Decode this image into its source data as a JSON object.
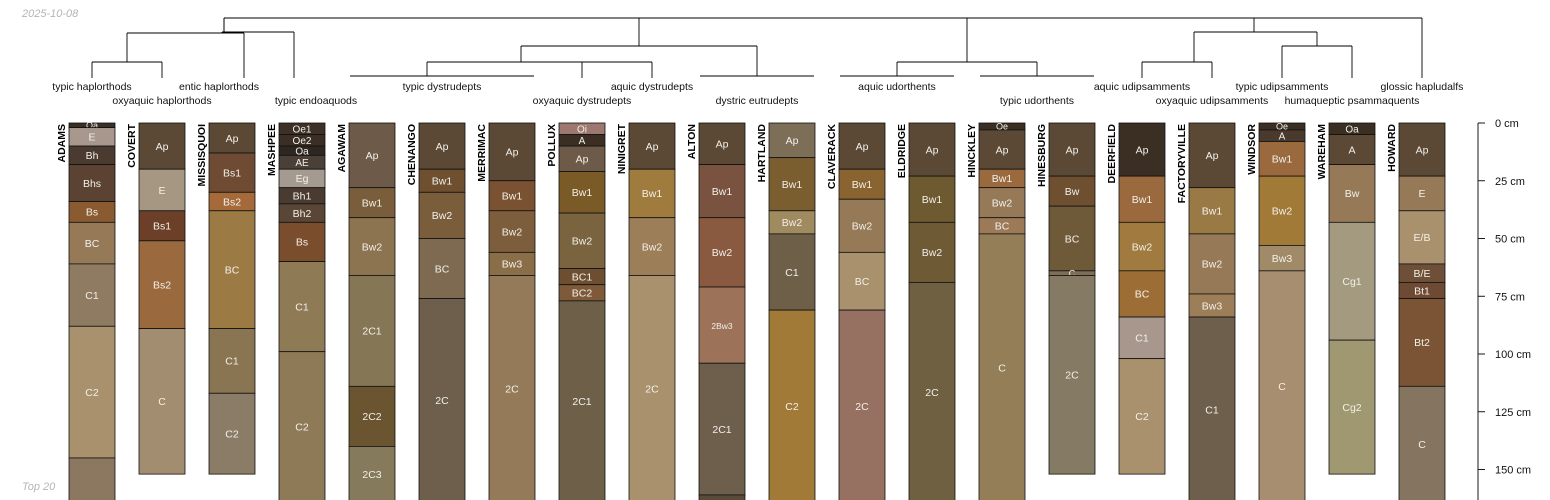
{
  "header": {
    "date": "2025-10-08"
  },
  "footer": {
    "label": "Top 20"
  },
  "depth_axis": {
    "unit": "cm",
    "ticks": [
      {
        "depth": 0,
        "label": "0 cm"
      },
      {
        "depth": 25,
        "label": "25 cm"
      },
      {
        "depth": 50,
        "label": "50 cm"
      },
      {
        "depth": 75,
        "label": "75 cm"
      },
      {
        "depth": 100,
        "label": "100 cm"
      },
      {
        "depth": 125,
        "label": "125 cm"
      },
      {
        "depth": 150,
        "label": "150 cm"
      }
    ]
  },
  "subgroups": [
    {
      "label": "typic haplorthods",
      "profiles": [
        "ADAMS"
      ]
    },
    {
      "label": "oxyaquic haplorthods",
      "profiles": [
        "COVERT"
      ]
    },
    {
      "label": "entic haplorthods",
      "profiles": [
        "MISSISQUOI"
      ]
    },
    {
      "label": "typic endoaquods",
      "profiles": [
        "MASHPEE"
      ]
    },
    {
      "label": "typic dystrudepts",
      "profiles": [
        "AGAWAM",
        "CHENANGO",
        "MERRIMAC"
      ]
    },
    {
      "label": "oxyaquic dystrudepts",
      "profiles": [
        "POLLUX"
      ]
    },
    {
      "label": "aquic dystrudepts",
      "profiles": [
        "NINIGRET"
      ]
    },
    {
      "label": "dystric eutrudepts",
      "profiles": [
        "ALTON",
        "HARTLAND"
      ]
    },
    {
      "label": "aquic udorthents",
      "profiles": [
        "CLAVERACK",
        "ELDRIDGE"
      ]
    },
    {
      "label": "typic udorthents",
      "profiles": [
        "HINCKLEY",
        "HINESBURG"
      ]
    },
    {
      "label": "aquic udipsamments",
      "profiles": [
        "DEERFIELD"
      ]
    },
    {
      "label": "oxyaquic udipsamments",
      "profiles": [
        "FACTORYVILLE"
      ]
    },
    {
      "label": "typic udipsamments",
      "profiles": [
        "WINDSOR"
      ]
    },
    {
      "label": "humaqueptic psammaquents",
      "profiles": [
        "WAREHAM"
      ]
    },
    {
      "label": "glossic hapludalfs",
      "profiles": [
        "HOWARD"
      ]
    }
  ],
  "profiles": [
    {
      "name": "ADAMS",
      "horizons": [
        {
          "name": "Oa",
          "top": 0,
          "bottom": 2,
          "color": "#3b2f24"
        },
        {
          "name": "E",
          "top": 2,
          "bottom": 10,
          "color": "#a7978c"
        },
        {
          "name": "Bh",
          "top": 10,
          "bottom": 18,
          "color": "#4a3a30"
        },
        {
          "name": "Bhs",
          "top": 18,
          "bottom": 34,
          "color": "#5b4232"
        },
        {
          "name": "Bs",
          "top": 34,
          "bottom": 43,
          "color": "#8a5a30"
        },
        {
          "name": "BC",
          "top": 43,
          "bottom": 61,
          "color": "#967a58"
        },
        {
          "name": "C1",
          "top": 61,
          "bottom": 88,
          "color": "#8f7a62"
        },
        {
          "name": "C2",
          "top": 88,
          "bottom": 145,
          "color": "#a8916c"
        },
        {
          "name": "",
          "top": 145,
          "bottom": 165,
          "color": "#8c7760"
        }
      ]
    },
    {
      "name": "COVERT",
      "horizons": [
        {
          "name": "Ap",
          "top": 0,
          "bottom": 20,
          "color": "#5b4835"
        },
        {
          "name": "E",
          "top": 20,
          "bottom": 38,
          "color": "#a69783"
        },
        {
          "name": "Bs1",
          "top": 38,
          "bottom": 51,
          "color": "#6b3f28"
        },
        {
          "name": "Bs2",
          "top": 51,
          "bottom": 89,
          "color": "#9a6a3e"
        },
        {
          "name": "C",
          "top": 89,
          "bottom": 152,
          "color": "#a38d70"
        }
      ]
    },
    {
      "name": "MISSISQUOI",
      "horizons": [
        {
          "name": "Ap",
          "top": 0,
          "bottom": 13,
          "color": "#5b4835"
        },
        {
          "name": "Bs1",
          "top": 13,
          "bottom": 30,
          "color": "#6f4b33"
        },
        {
          "name": "Bs2",
          "top": 30,
          "bottom": 38,
          "color": "#a66a3a"
        },
        {
          "name": "BC",
          "top": 38,
          "bottom": 89,
          "color": "#9c7a44"
        },
        {
          "name": "C1",
          "top": 89,
          "bottom": 117,
          "color": "#8a7552"
        },
        {
          "name": "C2",
          "top": 117,
          "bottom": 152,
          "color": "#8b7c67"
        }
      ]
    },
    {
      "name": "MASHPEE",
      "horizons": [
        {
          "name": "Oe1",
          "top": 0,
          "bottom": 5,
          "color": "#3d3027"
        },
        {
          "name": "Oe2",
          "top": 5,
          "bottom": 10,
          "color": "#3a2e25"
        },
        {
          "name": "Oa",
          "top": 10,
          "bottom": 14,
          "color": "#2e2620"
        },
        {
          "name": "AE",
          "top": 14,
          "bottom": 20,
          "color": "#4a4038"
        },
        {
          "name": "Eg",
          "top": 20,
          "bottom": 28,
          "color": "#a49a90"
        },
        {
          "name": "Bh1",
          "top": 28,
          "bottom": 35,
          "color": "#4a3b30"
        },
        {
          "name": "Bh2",
          "top": 35,
          "bottom": 43,
          "color": "#5a4636"
        },
        {
          "name": "Bs",
          "top": 43,
          "bottom": 60,
          "color": "#7a4e2c"
        },
        {
          "name": "C1",
          "top": 60,
          "bottom": 99,
          "color": "#8f7a56"
        },
        {
          "name": "C2",
          "top": 99,
          "bottom": 165,
          "color": "#8f7a58"
        }
      ]
    },
    {
      "name": "AGAWAM",
      "horizons": [
        {
          "name": "Ap",
          "top": 0,
          "bottom": 28,
          "color": "#6e5a48"
        },
        {
          "name": "Bw1",
          "top": 28,
          "bottom": 41,
          "color": "#7a5e3c"
        },
        {
          "name": "Bw2",
          "top": 41,
          "bottom": 66,
          "color": "#8c7450"
        },
        {
          "name": "2C1",
          "top": 66,
          "bottom": 114,
          "color": "#857755"
        },
        {
          "name": "2C2",
          "top": 114,
          "bottom": 140,
          "color": "#6b5530"
        },
        {
          "name": "2C3",
          "top": 140,
          "bottom": 165,
          "color": "#857a5c"
        }
      ]
    },
    {
      "name": "CHENANGO",
      "horizons": [
        {
          "name": "Ap",
          "top": 0,
          "bottom": 20,
          "color": "#5b4835"
        },
        {
          "name": "Bw1",
          "top": 20,
          "bottom": 30,
          "color": "#6e5030"
        },
        {
          "name": "Bw2",
          "top": 30,
          "bottom": 50,
          "color": "#7a5e3c"
        },
        {
          "name": "BC",
          "top": 50,
          "bottom": 76,
          "color": "#7d6a50"
        },
        {
          "name": "2C",
          "top": 76,
          "bottom": 165,
          "color": "#6e5e4c"
        }
      ]
    },
    {
      "name": "MERRIMAC",
      "horizons": [
        {
          "name": "Ap",
          "top": 0,
          "bottom": 25,
          "color": "#5b4835"
        },
        {
          "name": "Bw1",
          "top": 25,
          "bottom": 38,
          "color": "#7a5232"
        },
        {
          "name": "Bw2",
          "top": 38,
          "bottom": 56,
          "color": "#7d5e3c"
        },
        {
          "name": "Bw3",
          "top": 56,
          "bottom": 66,
          "color": "#8a6e48"
        },
        {
          "name": "2C",
          "top": 66,
          "bottom": 165,
          "color": "#947a58"
        }
      ]
    },
    {
      "name": "POLLUX",
      "horizons": [
        {
          "name": "Oi",
          "top": 0,
          "bottom": 5,
          "color": "#9c7870"
        },
        {
          "name": "A",
          "top": 5,
          "bottom": 10,
          "color": "#3b2f24"
        },
        {
          "name": "Ap",
          "top": 10,
          "bottom": 21,
          "color": "#6e5a48"
        },
        {
          "name": "Bw1",
          "top": 21,
          "bottom": 39,
          "color": "#7a5a26"
        },
        {
          "name": "Bw2",
          "top": 39,
          "bottom": 63,
          "color": "#7a6440"
        },
        {
          "name": "BC1",
          "top": 63,
          "bottom": 70,
          "color": "#6e4e30"
        },
        {
          "name": "BC2",
          "top": 70,
          "bottom": 77,
          "color": "#7e5a3a"
        },
        {
          "name": "2C1",
          "top": 77,
          "bottom": 165,
          "color": "#6e6048"
        }
      ]
    },
    {
      "name": "NINIGRET",
      "horizons": [
        {
          "name": "Ap",
          "top": 0,
          "bottom": 20,
          "color": "#5b4835"
        },
        {
          "name": "Bw1",
          "top": 20,
          "bottom": 41,
          "color": "#a07b3e"
        },
        {
          "name": "Bw2",
          "top": 41,
          "bottom": 66,
          "color": "#9c7e58"
        },
        {
          "name": "2C",
          "top": 66,
          "bottom": 165,
          "color": "#a8916c"
        }
      ]
    },
    {
      "name": "ALTON",
      "horizons": [
        {
          "name": "Ap",
          "top": 0,
          "bottom": 18,
          "color": "#5b4835"
        },
        {
          "name": "Bw1",
          "top": 18,
          "bottom": 41,
          "color": "#7a5240"
        },
        {
          "name": "Bw2",
          "top": 41,
          "bottom": 71,
          "color": "#8a5a40"
        },
        {
          "name": "2Bw3",
          "top": 71,
          "bottom": 104,
          "color": "#9c7258"
        },
        {
          "name": "2C1",
          "top": 104,
          "bottom": 161,
          "color": "#6e5e4c"
        },
        {
          "name": "",
          "top": 161,
          "bottom": 165,
          "color": "#5a4a3a"
        }
      ]
    },
    {
      "name": "HARTLAND",
      "horizons": [
        {
          "name": "Ap",
          "top": 0,
          "bottom": 15,
          "color": "#7d6e58"
        },
        {
          "name": "Bw1",
          "top": 15,
          "bottom": 38,
          "color": "#7a5e30"
        },
        {
          "name": "Bw2",
          "top": 38,
          "bottom": 48,
          "color": "#a08a60"
        },
        {
          "name": "C1",
          "top": 48,
          "bottom": 81,
          "color": "#6e6048"
        },
        {
          "name": "C2",
          "top": 81,
          "bottom": 165,
          "color": "#a07a36"
        }
      ]
    },
    {
      "name": "CLAVERACK",
      "horizons": [
        {
          "name": "Ap",
          "top": 0,
          "bottom": 20,
          "color": "#5b4835"
        },
        {
          "name": "Bw1",
          "top": 20,
          "bottom": 33,
          "color": "#8a6430"
        },
        {
          "name": "Bw2",
          "top": 33,
          "bottom": 56,
          "color": "#967a58"
        },
        {
          "name": "BC",
          "top": 56,
          "bottom": 81,
          "color": "#a8916c"
        },
        {
          "name": "2C",
          "top": 81,
          "bottom": 165,
          "color": "#967060"
        }
      ]
    },
    {
      "name": "ELDRIDGE",
      "horizons": [
        {
          "name": "Ap",
          "top": 0,
          "bottom": 23,
          "color": "#5b4835"
        },
        {
          "name": "Bw1",
          "top": 23,
          "bottom": 43,
          "color": "#6e5a30"
        },
        {
          "name": "Bw2",
          "top": 43,
          "bottom": 69,
          "color": "#6e5a34"
        },
        {
          "name": "2C",
          "top": 69,
          "bottom": 165,
          "color": "#6e6040"
        }
      ]
    },
    {
      "name": "HINCKLEY",
      "horizons": [
        {
          "name": "Oe",
          "top": 0,
          "bottom": 3,
          "color": "#3b2f24"
        },
        {
          "name": "Ap",
          "top": 3,
          "bottom": 20,
          "color": "#5b4835"
        },
        {
          "name": "Bw1",
          "top": 20,
          "bottom": 28,
          "color": "#9a6a3e"
        },
        {
          "name": "Bw2",
          "top": 28,
          "bottom": 41,
          "color": "#967a58"
        },
        {
          "name": "BC",
          "top": 41,
          "bottom": 48,
          "color": "#9c7a58"
        },
        {
          "name": "C",
          "top": 48,
          "bottom": 165,
          "color": "#947e58"
        }
      ]
    },
    {
      "name": "HINESBURG",
      "horizons": [
        {
          "name": "Ap",
          "top": 0,
          "bottom": 23,
          "color": "#5b4835"
        },
        {
          "name": "Bw",
          "top": 23,
          "bottom": 36,
          "color": "#6e5030"
        },
        {
          "name": "BC",
          "top": 36,
          "bottom": 64,
          "color": "#6e5a38"
        },
        {
          "name": "C",
          "top": 64,
          "bottom": 66,
          "color": "#7e6e58"
        },
        {
          "name": "2C",
          "top": 66,
          "bottom": 152,
          "color": "#857a64"
        }
      ]
    },
    {
      "name": "DEERFIELD",
      "horizons": [
        {
          "name": "Ap",
          "top": 0,
          "bottom": 23,
          "color": "#3b2f24"
        },
        {
          "name": "Bw1",
          "top": 23,
          "bottom": 43,
          "color": "#9a6a3e"
        },
        {
          "name": "Bw2",
          "top": 43,
          "bottom": 64,
          "color": "#a07a3e"
        },
        {
          "name": "BC",
          "top": 64,
          "bottom": 84,
          "color": "#9c6e36"
        },
        {
          "name": "C1",
          "top": 84,
          "bottom": 102,
          "color": "#a8978c"
        },
        {
          "name": "C2",
          "top": 102,
          "bottom": 152,
          "color": "#a8916c"
        }
      ]
    },
    {
      "name": "FACTORYVILLE",
      "horizons": [
        {
          "name": "Ap",
          "top": 0,
          "bottom": 28,
          "color": "#5b4835"
        },
        {
          "name": "Bw1",
          "top": 28,
          "bottom": 48,
          "color": "#9a7a44"
        },
        {
          "name": "Bw2",
          "top": 48,
          "bottom": 74,
          "color": "#967a58"
        },
        {
          "name": "Bw3",
          "top": 74,
          "bottom": 84,
          "color": "#9c7e58"
        },
        {
          "name": "C1",
          "top": 84,
          "bottom": 165,
          "color": "#6e5e4c"
        }
      ]
    },
    {
      "name": "WINDSOR",
      "horizons": [
        {
          "name": "Oe",
          "top": 0,
          "bottom": 3,
          "color": "#3b2f24"
        },
        {
          "name": "A",
          "top": 3,
          "bottom": 8,
          "color": "#4a3a2e"
        },
        {
          "name": "Bw1",
          "top": 8,
          "bottom": 23,
          "color": "#9a6a3e"
        },
        {
          "name": "Bw2",
          "top": 23,
          "bottom": 53,
          "color": "#a07a36"
        },
        {
          "name": "Bw3",
          "top": 53,
          "bottom": 64,
          "color": "#a08a68"
        },
        {
          "name": "C",
          "top": 64,
          "bottom": 165,
          "color": "#a88e70"
        }
      ]
    },
    {
      "name": "WAREHAM",
      "horizons": [
        {
          "name": "Oa",
          "top": 0,
          "bottom": 5,
          "color": "#3b2f24"
        },
        {
          "name": "A",
          "top": 5,
          "bottom": 18,
          "color": "#5b4835"
        },
        {
          "name": "Bw",
          "top": 18,
          "bottom": 43,
          "color": "#967a58"
        },
        {
          "name": "Cg1",
          "top": 43,
          "bottom": 94,
          "color": "#a39a80"
        },
        {
          "name": "Cg2",
          "top": 94,
          "bottom": 152,
          "color": "#a09870"
        }
      ]
    },
    {
      "name": "HOWARD",
      "horizons": [
        {
          "name": "Ap",
          "top": 0,
          "bottom": 23,
          "color": "#5b4835"
        },
        {
          "name": "E",
          "top": 23,
          "bottom": 38,
          "color": "#967a58"
        },
        {
          "name": "E/B",
          "top": 38,
          "bottom": 61,
          "color": "#a8916c"
        },
        {
          "name": "B/E",
          "top": 61,
          "bottom": 69,
          "color": "#6e5038"
        },
        {
          "name": "Bt1",
          "top": 69,
          "bottom": 76,
          "color": "#6e4a34"
        },
        {
          "name": "Bt2",
          "top": 76,
          "bottom": 114,
          "color": "#7a5434"
        },
        {
          "name": "C",
          "top": 114,
          "bottom": 165,
          "color": "#857560"
        }
      ]
    }
  ]
}
